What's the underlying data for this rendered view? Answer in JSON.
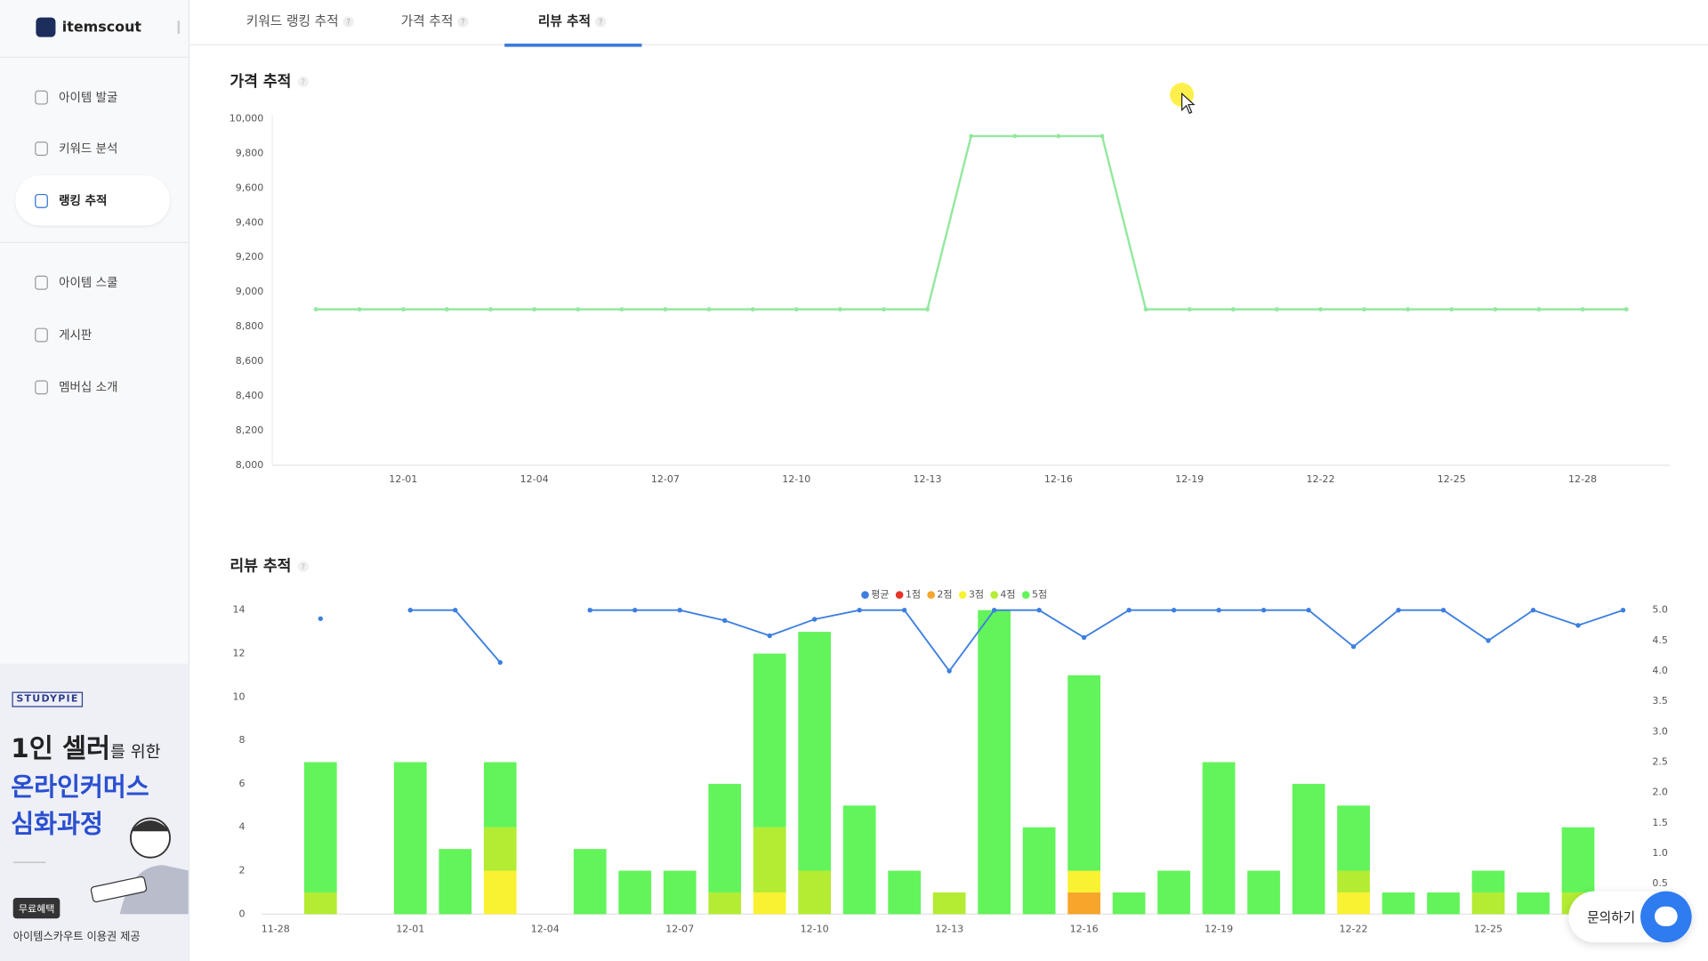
{
  "logo": "itemscout",
  "nav": [
    "아이템 발굴",
    "키워드 분석",
    "랭킹 추적",
    "아이템 스쿨",
    "게시판",
    "멤버십 소개"
  ],
  "active_nav": 2,
  "ad": {
    "brand": "STUDYPIE",
    "line1_big": "1인 셀러",
    "line1_small": "를 위한",
    "line2": "온라인커머스",
    "line3": "심화과정",
    "badge": "무료혜택",
    "footer": "아이템스카우트 이용권 제공"
  },
  "tabs": [
    "키워드 랭킹 추적",
    "가격 추적",
    "리뷰 추적"
  ],
  "active_tab": 2,
  "help_icon": "?",
  "chat_button": "문의하기",
  "chart_data": [
    {
      "type": "line",
      "title": "가격 추적",
      "categories": [
        null,
        null,
        "12-01",
        null,
        null,
        "12-04",
        null,
        null,
        "12-07",
        null,
        null,
        "12-10",
        null,
        null,
        "12-13",
        null,
        null,
        "12-16",
        null,
        null,
        "12-19",
        null,
        null,
        "12-22",
        null,
        null,
        "12-25",
        null,
        null,
        "12-28",
        null
      ],
      "values": [
        8900,
        8900,
        8900,
        8900,
        8900,
        8900,
        8900,
        8900,
        8900,
        8900,
        8900,
        8900,
        8900,
        8900,
        8900,
        9900,
        9900,
        9900,
        9900,
        8900,
        8900,
        8900,
        8900,
        8900,
        8900,
        8900,
        8900,
        8900,
        8900,
        8900,
        8900
      ],
      "color": "#93e89f",
      "ylim": [
        8000,
        10000
      ],
      "yticks": [
        {
          "value": 8000,
          "label": "8,000"
        },
        {
          "value": 8200,
          "label": "8,200"
        },
        {
          "value": 8400,
          "label": "8,400"
        },
        {
          "value": 8600,
          "label": "8,600"
        },
        {
          "value": 8800,
          "label": "8,800"
        },
        {
          "value": 9000,
          "label": "9,000"
        },
        {
          "value": 9200,
          "label": "9,200"
        },
        {
          "value": 9400,
          "label": "9,400"
        },
        {
          "value": 9600,
          "label": "9,600"
        },
        {
          "value": 9800,
          "label": "9,800"
        },
        {
          "value": 10000,
          "label": "10,000"
        }
      ],
      "grid": false
    },
    {
      "type": "bar",
      "stacked": true,
      "title": "리뷰 추적",
      "legend": "top",
      "categories": [
        "11-28",
        null,
        null,
        "12-01",
        null,
        null,
        "12-04",
        null,
        null,
        "12-07",
        null,
        null,
        "12-10",
        null,
        null,
        "12-13",
        null,
        null,
        "12-16",
        null,
        null,
        "12-19",
        null,
        null,
        "12-22",
        null,
        null,
        "12-25",
        null,
        null,
        null
      ],
      "series": [
        {
          "name": "평균",
          "color": "#3d7fe0",
          "type": "line",
          "axis": "y2",
          "values": [
            null,
            4.86,
            null,
            5,
            5,
            4.14,
            null,
            5,
            5,
            5,
            4.83,
            4.58,
            4.85,
            5,
            5,
            4,
            5,
            5,
            4.55,
            5,
            5,
            5,
            5,
            5,
            4.4,
            5,
            5,
            4.5,
            5,
            4.75,
            5
          ]
        },
        {
          "name": "1점",
          "color": "#e8332a",
          "values": [
            0,
            0,
            0,
            0,
            0,
            0,
            0,
            0,
            0,
            0,
            0,
            0,
            0,
            0,
            0,
            0,
            0,
            0,
            0,
            0,
            0,
            0,
            0,
            0,
            0,
            0,
            0,
            0,
            0,
            0,
            null
          ]
        },
        {
          "name": "2점",
          "color": "#f7a52b",
          "values": [
            0,
            0,
            0,
            0,
            0,
            0,
            0,
            0,
            0,
            0,
            0,
            0,
            0,
            0,
            0,
            0,
            0,
            0,
            1,
            0,
            0,
            0,
            0,
            0,
            0,
            0,
            0,
            0,
            0,
            0,
            null
          ]
        },
        {
          "name": "3점",
          "color": "#f9f232",
          "values": [
            0,
            0,
            0,
            0,
            0,
            2,
            0,
            0,
            0,
            0,
            0,
            1,
            0,
            0,
            0,
            0,
            0,
            0,
            1,
            0,
            0,
            0,
            0,
            0,
            1,
            0,
            0,
            0,
            0,
            0,
            null
          ]
        },
        {
          "name": "4점",
          "color": "#b3ec32",
          "values": [
            0,
            1,
            0,
            0,
            0,
            2,
            0,
            0,
            0,
            0,
            1,
            3,
            2,
            0,
            0,
            1,
            0,
            0,
            0,
            0,
            0,
            0,
            0,
            0,
            1,
            0,
            0,
            1,
            0,
            1,
            null
          ]
        },
        {
          "name": "5점",
          "color": "#62f45a",
          "values": [
            0,
            6,
            0,
            7,
            3,
            3,
            0,
            3,
            2,
            2,
            5,
            8,
            11,
            5,
            2,
            0,
            14,
            4,
            9,
            1,
            2,
            7,
            2,
            6,
            3,
            1,
            1,
            1,
            1,
            3,
            null
          ]
        }
      ],
      "ylim": [
        0,
        14
      ],
      "yticks": [
        0,
        2,
        4,
        6,
        8,
        10,
        12,
        14
      ],
      "y2lim": [
        0,
        5
      ],
      "y2ticks": [
        0.5,
        {
          "value": 1,
          "label": "1.0"
        },
        1.5,
        {
          "value": 2,
          "label": "2.0"
        },
        2.5,
        {
          "value": 3,
          "label": "3.0"
        },
        3.5,
        {
          "value": 4,
          "label": "4.0"
        },
        4.5,
        {
          "value": 5,
          "label": "5.0"
        }
      ],
      "grid": false
    }
  ]
}
